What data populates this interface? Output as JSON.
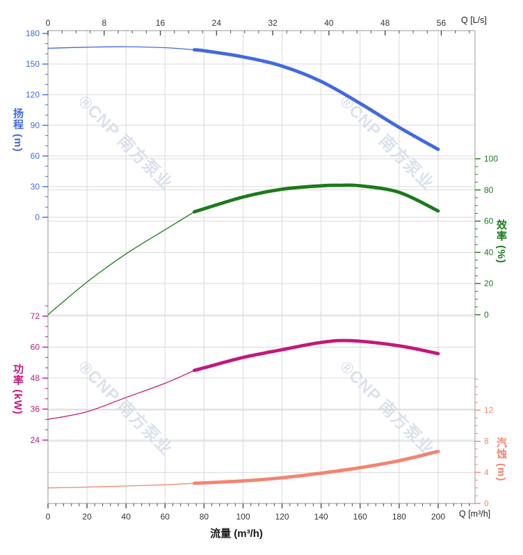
{
  "watermark": {
    "text": "®CNP 南方泵业",
    "color": "rgba(176,189,216,0.45)"
  },
  "chart_data": {
    "type": "line",
    "title": "",
    "xlabel": "流量 (m³/h)",
    "grid": true,
    "x_axis_bottom": {
      "label": "Q [m³/h]",
      "min": 0,
      "max": 200,
      "ticks": [
        0,
        20,
        40,
        60,
        80,
        100,
        120,
        140,
        160,
        180,
        200
      ],
      "minor_step": 4,
      "minor_max": 216,
      "color": "#333333"
    },
    "x_axis_top": {
      "label": "Q [L/s]",
      "min": 0,
      "max": 56,
      "ticks": [
        0,
        8,
        16,
        24,
        32,
        40,
        48,
        56
      ],
      "minor_step": 2,
      "minor_max": 60,
      "to_m3h_factor": 3.6,
      "color": "#333333"
    },
    "y_axes": [
      {
        "id": "head",
        "title": "扬程 (m)",
        "side": "left",
        "color": "#4169e1",
        "min": 0,
        "max": 180,
        "ticks": [
          0,
          30,
          60,
          90,
          120,
          150,
          180
        ],
        "minor_step": 10,
        "minor_max": 180
      },
      {
        "id": "eff",
        "title": "效率 (%)",
        "side": "right",
        "color": "#1a7a1a",
        "min": 0,
        "max": 100,
        "ticks": [
          0,
          20,
          40,
          60,
          80,
          100
        ],
        "minor_step": 5,
        "minor_max": 100
      },
      {
        "id": "power",
        "title": "功率 (kW)",
        "side": "left",
        "color": "#c2187c",
        "min": 24,
        "max": 72,
        "ticks": [
          24,
          36,
          48,
          60,
          72
        ],
        "minor_step": 4,
        "minor_max": 76
      },
      {
        "id": "npsh",
        "title": "汽蚀 (m)",
        "side": "right",
        "color": "#f5836f",
        "min": 0,
        "max": 12,
        "ticks": [
          0,
          4,
          8,
          12
        ],
        "minor_step": 1,
        "minor_max": 16
      }
    ],
    "series": [
      {
        "name": "head-curve",
        "axis": "head",
        "color": "#4169e1",
        "thick_from": 75,
        "points": [
          [
            0,
            165.5
          ],
          [
            20,
            166.5
          ],
          [
            40,
            167
          ],
          [
            60,
            166
          ],
          [
            75,
            164
          ],
          [
            80,
            163
          ],
          [
            100,
            157
          ],
          [
            120,
            148
          ],
          [
            140,
            133
          ],
          [
            160,
            111.5
          ],
          [
            180,
            88
          ],
          [
            200,
            66.5
          ]
        ]
      },
      {
        "name": "efficiency-curve",
        "axis": "eff",
        "color": "#1a7a1a",
        "thick_from": 75,
        "points": [
          [
            0,
            0
          ],
          [
            20,
            21
          ],
          [
            40,
            39
          ],
          [
            60,
            54.5
          ],
          [
            75,
            66
          ],
          [
            100,
            75.5
          ],
          [
            120,
            80.5
          ],
          [
            140,
            82.7
          ],
          [
            150,
            83
          ],
          [
            160,
            82.7
          ],
          [
            180,
            78.5
          ],
          [
            200,
            66.5
          ]
        ]
      },
      {
        "name": "power-curve",
        "axis": "power",
        "color": "#c2187c",
        "thick_from": 75,
        "points": [
          [
            0,
            32
          ],
          [
            20,
            35
          ],
          [
            40,
            40.5
          ],
          [
            60,
            46
          ],
          [
            75,
            51
          ],
          [
            80,
            52
          ],
          [
            100,
            56
          ],
          [
            120,
            59
          ],
          [
            140,
            61.8
          ],
          [
            155,
            62.5
          ],
          [
            180,
            60.5
          ],
          [
            200,
            57.5
          ]
        ]
      },
      {
        "name": "npsh-curve",
        "axis": "npsh",
        "color": "#f5836f",
        "thick_from": 75,
        "points": [
          [
            0,
            2.0
          ],
          [
            20,
            2.1
          ],
          [
            40,
            2.25
          ],
          [
            60,
            2.4
          ],
          [
            75,
            2.6
          ],
          [
            100,
            2.9
          ],
          [
            120,
            3.3
          ],
          [
            140,
            3.9
          ],
          [
            160,
            4.6
          ],
          [
            180,
            5.5
          ],
          [
            200,
            6.7
          ]
        ]
      }
    ],
    "style": {
      "grid_color": "#d9d9d9",
      "border_color": "#a8a8a8",
      "tick_color": "#4d4d4d"
    }
  }
}
